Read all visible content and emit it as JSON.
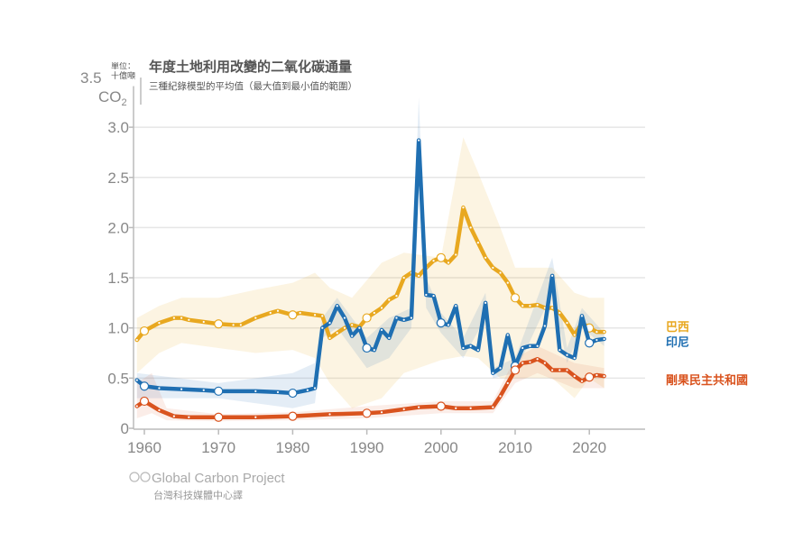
{
  "chart_data": {
    "type": "line",
    "title": "年度土地利用改變的二氧化碳通量",
    "subtitle": "三種紀錄模型的平均值（最大值到最小值的範圍）",
    "ylabel_unit": "單位：十億噸",
    "ylabel_gas": "CO",
    "ylabel_gas_sub": "2",
    "xlim": [
      1959,
      2026
    ],
    "ylim": [
      0,
      3.5
    ],
    "x_ticks": [
      1960,
      1970,
      1980,
      1990,
      2000,
      2010,
      2020
    ],
    "y_ticks": [
      0,
      0.5,
      1.0,
      1.5,
      2.0,
      2.5,
      3.0,
      3.5
    ],
    "y_tick_labels": [
      "0",
      "0.5",
      "1.0",
      "1.5",
      "2.0",
      "2.5",
      "3.0",
      "3.5"
    ],
    "grid": true,
    "legend_placement": "right, inline labels",
    "series": [
      {
        "name": "巴西",
        "color": "#e8a820",
        "points": [
          [
            1959,
            0.88
          ],
          [
            1960,
            0.97
          ],
          [
            1962,
            1.05
          ],
          [
            1964,
            1.1
          ],
          [
            1965,
            1.1
          ],
          [
            1966,
            1.08
          ],
          [
            1968,
            1.06
          ],
          [
            1970,
            1.04
          ],
          [
            1972,
            1.03
          ],
          [
            1973,
            1.03
          ],
          [
            1975,
            1.1
          ],
          [
            1977,
            1.15
          ],
          [
            1978,
            1.17
          ],
          [
            1980,
            1.13
          ],
          [
            1981,
            1.15
          ],
          [
            1983,
            1.13
          ],
          [
            1984,
            1.12
          ],
          [
            1985,
            0.9
          ],
          [
            1986,
            0.95
          ],
          [
            1987,
            1.0
          ],
          [
            1988,
            1.03
          ],
          [
            1989,
            1.01
          ],
          [
            1990,
            1.1
          ],
          [
            1991,
            1.15
          ],
          [
            1992,
            1.2
          ],
          [
            1993,
            1.28
          ],
          [
            1994,
            1.32
          ],
          [
            1995,
            1.5
          ],
          [
            1996,
            1.55
          ],
          [
            1997,
            1.52
          ],
          [
            1998,
            1.6
          ],
          [
            1999,
            1.67
          ],
          [
            2000,
            1.7
          ],
          [
            2001,
            1.65
          ],
          [
            2002,
            1.73
          ],
          [
            2003,
            2.2
          ],
          [
            2004,
            2.0
          ],
          [
            2005,
            1.85
          ],
          [
            2006,
            1.7
          ],
          [
            2007,
            1.6
          ],
          [
            2008,
            1.55
          ],
          [
            2009,
            1.45
          ],
          [
            2010,
            1.3
          ],
          [
            2011,
            1.22
          ],
          [
            2012,
            1.22
          ],
          [
            2013,
            1.23
          ],
          [
            2014,
            1.2
          ],
          [
            2015,
            1.2
          ],
          [
            2016,
            1.15
          ],
          [
            2017,
            1.05
          ],
          [
            2018,
            0.93
          ],
          [
            2019,
            1.05
          ],
          [
            2020,
            1.0
          ],
          [
            2021,
            0.96
          ],
          [
            2022,
            0.96
          ]
        ],
        "range": [
          [
            1959,
            0.55,
            1.1
          ],
          [
            1962,
            0.75,
            1.22
          ],
          [
            1965,
            0.85,
            1.3
          ],
          [
            1970,
            0.8,
            1.3
          ],
          [
            1975,
            0.75,
            1.38
          ],
          [
            1980,
            0.78,
            1.45
          ],
          [
            1983,
            0.7,
            1.55
          ],
          [
            1985,
            0.45,
            1.4
          ],
          [
            1988,
            0.2,
            1.3
          ],
          [
            1992,
            0.3,
            1.65
          ],
          [
            1995,
            0.55,
            1.75
          ],
          [
            2000,
            0.68,
            1.7
          ],
          [
            2003,
            0.72,
            2.9
          ],
          [
            2005,
            0.7,
            2.55
          ],
          [
            2008,
            0.5,
            2.0
          ],
          [
            2010,
            0.5,
            1.6
          ],
          [
            2015,
            0.5,
            1.6
          ],
          [
            2018,
            0.3,
            1.35
          ],
          [
            2020,
            0.5,
            1.3
          ],
          [
            2022,
            0.4,
            1.3
          ]
        ]
      },
      {
        "name": "印尼",
        "color": "#1f6fb2",
        "points": [
          [
            1959,
            0.48
          ],
          [
            1960,
            0.42
          ],
          [
            1962,
            0.4
          ],
          [
            1965,
            0.39
          ],
          [
            1968,
            0.38
          ],
          [
            1970,
            0.37
          ],
          [
            1975,
            0.37
          ],
          [
            1978,
            0.36
          ],
          [
            1980,
            0.35
          ],
          [
            1982,
            0.38
          ],
          [
            1983,
            0.4
          ],
          [
            1984,
            1.0
          ],
          [
            1985,
            1.05
          ],
          [
            1986,
            1.22
          ],
          [
            1987,
            1.1
          ],
          [
            1988,
            0.92
          ],
          [
            1989,
            1.0
          ],
          [
            1990,
            0.8
          ],
          [
            1991,
            0.78
          ],
          [
            1992,
            0.98
          ],
          [
            1993,
            0.9
          ],
          [
            1994,
            1.1
          ],
          [
            1995,
            1.08
          ],
          [
            1996,
            1.1
          ],
          [
            1997,
            2.87
          ],
          [
            1998,
            1.33
          ],
          [
            1999,
            1.32
          ],
          [
            2000,
            1.05
          ],
          [
            2001,
            1.03
          ],
          [
            2002,
            1.22
          ],
          [
            2003,
            0.8
          ],
          [
            2004,
            0.82
          ],
          [
            2005,
            0.78
          ],
          [
            2006,
            1.25
          ],
          [
            2007,
            0.55
          ],
          [
            2008,
            0.6
          ],
          [
            2009,
            0.93
          ],
          [
            2010,
            0.62
          ],
          [
            2011,
            0.8
          ],
          [
            2012,
            0.82
          ],
          [
            2013,
            0.82
          ],
          [
            2014,
            1.02
          ],
          [
            2015,
            1.52
          ],
          [
            2016,
            0.78
          ],
          [
            2017,
            0.73
          ],
          [
            2018,
            0.7
          ],
          [
            2019,
            1.12
          ],
          [
            2020,
            0.85
          ],
          [
            2021,
            0.88
          ],
          [
            2022,
            0.89
          ]
        ],
        "range": [
          [
            1959,
            0.3,
            0.55
          ],
          [
            1970,
            0.3,
            0.45
          ],
          [
            1980,
            0.2,
            0.55
          ],
          [
            1983,
            0.25,
            0.65
          ],
          [
            1984,
            0.9,
            1.1
          ],
          [
            1986,
            1.0,
            1.3
          ],
          [
            1990,
            0.6,
            0.9
          ],
          [
            1993,
            0.7,
            1.1
          ],
          [
            1996,
            1.0,
            1.2
          ],
          [
            1997,
            2.7,
            3.3
          ],
          [
            1998,
            1.2,
            1.5
          ],
          [
            2000,
            0.95,
            1.15
          ],
          [
            2003,
            0.7,
            0.9
          ],
          [
            2006,
            1.1,
            1.35
          ],
          [
            2007,
            0.5,
            0.6
          ],
          [
            2010,
            0.55,
            0.7
          ],
          [
            2015,
            1.35,
            1.7
          ],
          [
            2017,
            0.65,
            0.8
          ],
          [
            2019,
            1.0,
            1.2
          ],
          [
            2022,
            0.82,
            0.95
          ]
        ]
      },
      {
        "name": "剛果民主共和國",
        "color": "#d9531e",
        "points": [
          [
            1959,
            0.22
          ],
          [
            1960,
            0.27
          ],
          [
            1962,
            0.18
          ],
          [
            1964,
            0.12
          ],
          [
            1966,
            0.11
          ],
          [
            1970,
            0.11
          ],
          [
            1975,
            0.11
          ],
          [
            1980,
            0.12
          ],
          [
            1985,
            0.14
          ],
          [
            1990,
            0.15
          ],
          [
            1992,
            0.16
          ],
          [
            1995,
            0.19
          ],
          [
            1997,
            0.21
          ],
          [
            2000,
            0.22
          ],
          [
            2002,
            0.2
          ],
          [
            2004,
            0.2
          ],
          [
            2007,
            0.21
          ],
          [
            2008,
            0.32
          ],
          [
            2009,
            0.45
          ],
          [
            2010,
            0.58
          ],
          [
            2011,
            0.65
          ],
          [
            2012,
            0.66
          ],
          [
            2013,
            0.69
          ],
          [
            2014,
            0.65
          ],
          [
            2015,
            0.58
          ],
          [
            2016,
            0.58
          ],
          [
            2017,
            0.58
          ],
          [
            2018,
            0.52
          ],
          [
            2019,
            0.47
          ],
          [
            2020,
            0.51
          ],
          [
            2021,
            0.53
          ],
          [
            2022,
            0.52
          ]
        ],
        "range": [
          [
            1959,
            0.1,
            0.45
          ],
          [
            1961,
            0.15,
            0.55
          ],
          [
            1963,
            0.08,
            0.2
          ],
          [
            1970,
            0.07,
            0.14
          ],
          [
            1980,
            0.08,
            0.16
          ],
          [
            1990,
            0.1,
            0.22
          ],
          [
            2000,
            0.15,
            0.27
          ],
          [
            2007,
            0.15,
            0.27
          ],
          [
            2010,
            0.45,
            0.7
          ],
          [
            2013,
            0.55,
            0.82
          ],
          [
            2018,
            0.4,
            0.65
          ],
          [
            2022,
            0.4,
            0.6
          ]
        ]
      }
    ]
  },
  "credits": {
    "source": "Global Carbon Project",
    "cc_icon": "creative-commons-icon",
    "translator": "台灣科技媒體中心譯"
  }
}
